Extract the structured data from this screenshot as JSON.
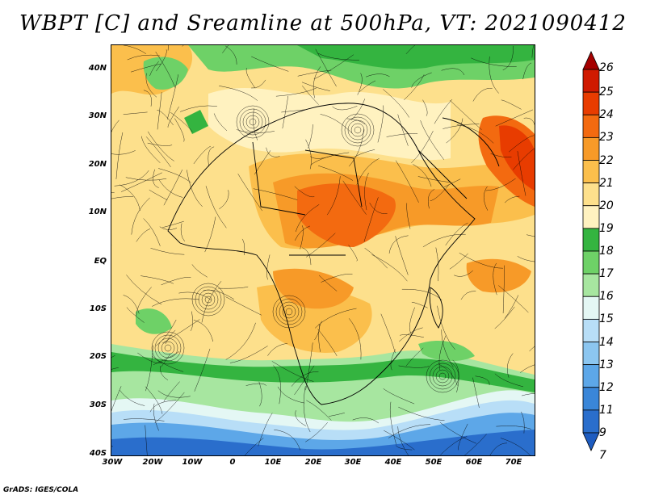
{
  "title": "WBPT [C] and Sreamline at 500hPa, VT: 2021090412",
  "credit": "GrADS: IGES/COLA",
  "map": {
    "lat_labels": [
      "40N",
      "30N",
      "20N",
      "10N",
      "EQ",
      "10S",
      "20S",
      "30S",
      "40S"
    ],
    "lon_labels": [
      "30W",
      "20W",
      "10W",
      "0",
      "10E",
      "20E",
      "30E",
      "40E",
      "50E",
      "60E",
      "70E"
    ]
  },
  "colorbar": {
    "labels": [
      "26",
      "25",
      "24",
      "23",
      "22",
      "21",
      "20",
      "19",
      "18",
      "17",
      "16",
      "15",
      "14",
      "13",
      "12",
      "11",
      "9",
      "7"
    ],
    "colors": [
      "#a50000",
      "#d01a00",
      "#e83c00",
      "#f36a10",
      "#f79a28",
      "#fbbf4c",
      "#fde08c",
      "#fff2c0",
      "#34b440",
      "#6ed167",
      "#a7e6a0",
      "#e4f7f4",
      "#b8def7",
      "#8cc6f0",
      "#5da7e8",
      "#3a86d8",
      "#2a6ecc",
      "#1e5cc0"
    ]
  },
  "legend": {
    "field_colors": {
      "deep_cold": "#2a6ecc",
      "cold": "#5da7e8",
      "cool": "#b8def7",
      "pale": "#e4f7f4",
      "green_light": "#a7e6a0",
      "green": "#6ed167",
      "green_dark": "#34b440",
      "cream": "#fff2c0",
      "yellow": "#fde08c",
      "orange_light": "#fbbf4c",
      "orange": "#f79a28",
      "orange_dark": "#f36a10",
      "red": "#e83c00"
    }
  }
}
